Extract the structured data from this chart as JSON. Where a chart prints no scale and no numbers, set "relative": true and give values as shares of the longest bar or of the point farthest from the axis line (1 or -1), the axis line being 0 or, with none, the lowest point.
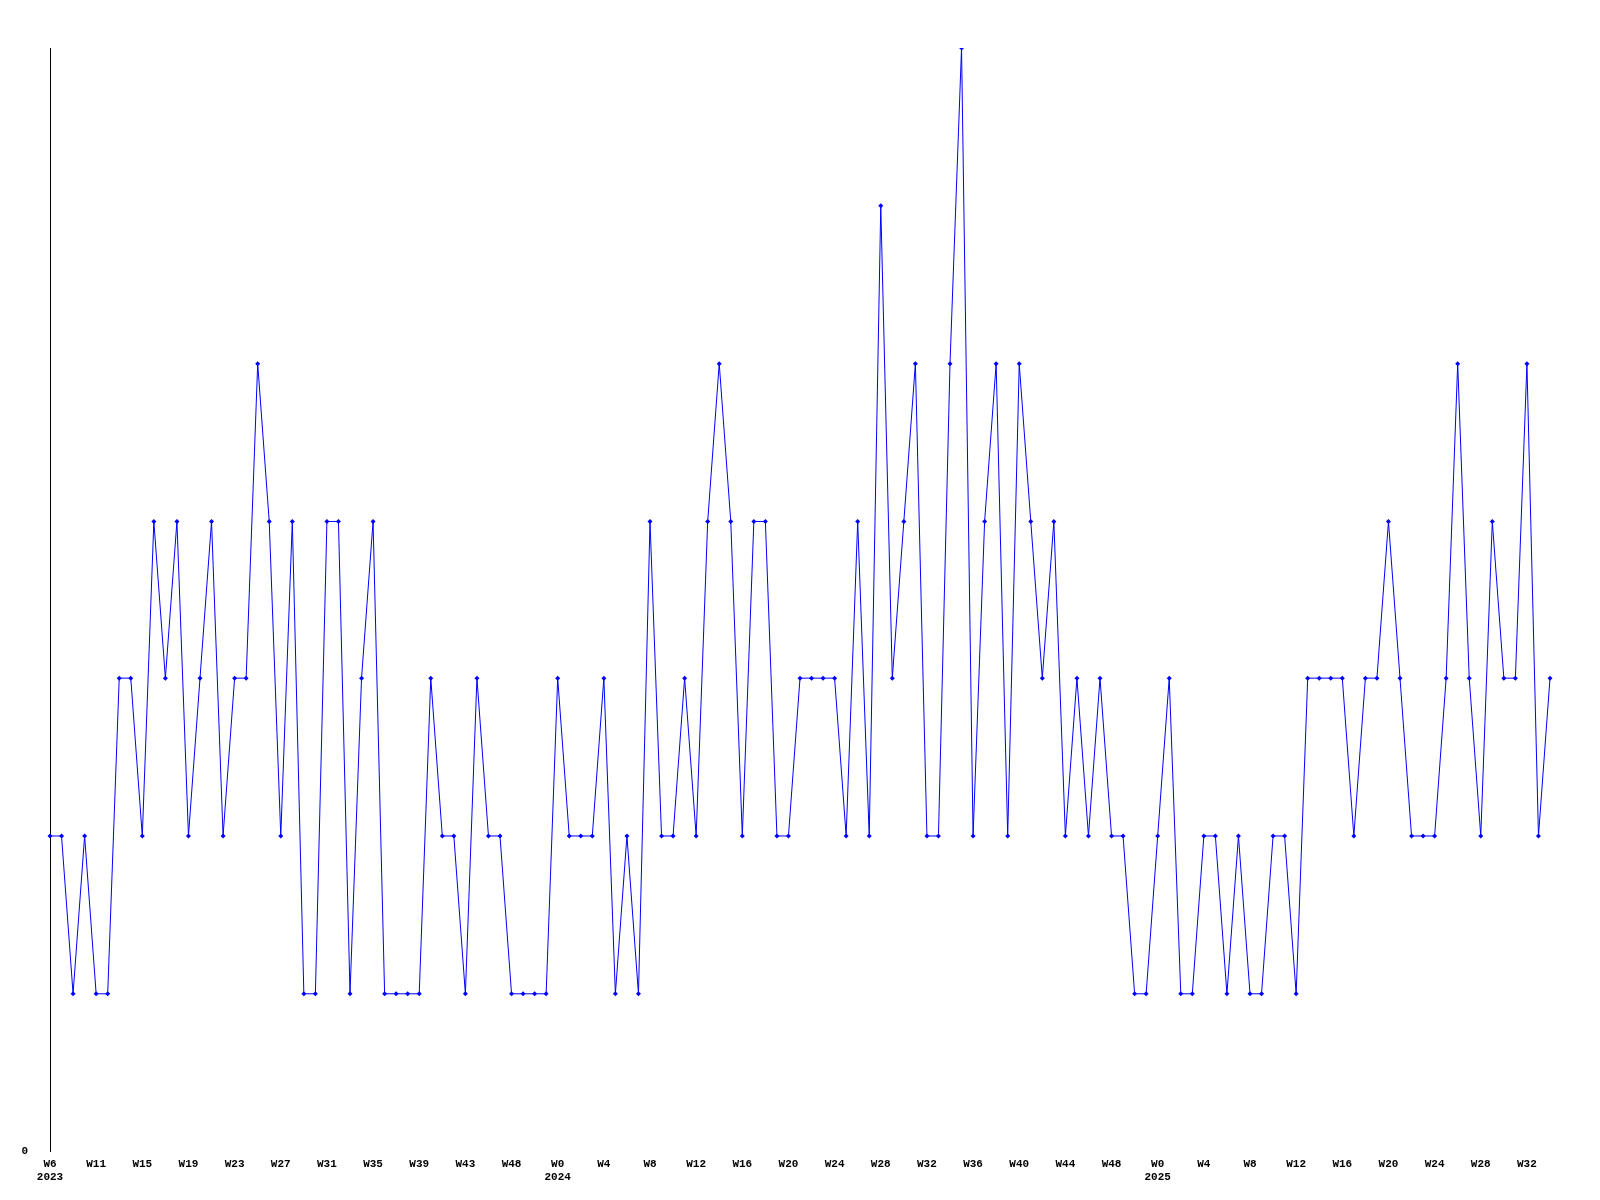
{
  "chart_data": {
    "type": "line",
    "relative": true,
    "color": "#0000ff",
    "marker": "diamond",
    "grid": false,
    "legend": false,
    "annotations": [
      "0"
    ],
    "categories": [
      "W6\n2023",
      null,
      null,
      null,
      "W11",
      null,
      null,
      null,
      "W15",
      null,
      null,
      null,
      "W19",
      null,
      null,
      null,
      "W23",
      null,
      null,
      null,
      "W27",
      null,
      null,
      null,
      "W31",
      null,
      null,
      null,
      "W35",
      null,
      null,
      null,
      "W39",
      null,
      null,
      null,
      "W43",
      null,
      null,
      null,
      "W48",
      null,
      null,
      null,
      "W0\n2024",
      null,
      null,
      null,
      "W4",
      null,
      null,
      null,
      "W8",
      null,
      null,
      null,
      "W12",
      null,
      null,
      null,
      "W16",
      null,
      null,
      null,
      "W20",
      null,
      null,
      null,
      "W24",
      null,
      null,
      null,
      "W28",
      null,
      null,
      null,
      "W32",
      null,
      null,
      null,
      "W36",
      null,
      null,
      null,
      "W40",
      null,
      null,
      null,
      "W44",
      null,
      null,
      null,
      "W48",
      null,
      null,
      null,
      "W0\n2025",
      null,
      null,
      null,
      "W4",
      null,
      null,
      null,
      "W8",
      null,
      null,
      null,
      "W12",
      null,
      null,
      null,
      "W16",
      null,
      null,
      null,
      "W20",
      null,
      null,
      null,
      "W24",
      null,
      null,
      null,
      "W28",
      null,
      null,
      null,
      "W32",
      null,
      null
    ],
    "values": [
      0.286,
      0.286,
      0.143,
      0.286,
      0.143,
      0.143,
      0.429,
      0.429,
      0.286,
      0.571,
      0.429,
      0.571,
      0.286,
      0.429,
      0.571,
      0.286,
      0.429,
      0.429,
      0.714,
      0.571,
      0.286,
      0.571,
      0.143,
      0.143,
      0.571,
      0.571,
      0.143,
      0.429,
      0.571,
      0.143,
      0.143,
      0.143,
      0.143,
      0.429,
      0.286,
      0.286,
      0.143,
      0.429,
      0.286,
      0.286,
      0.143,
      0.143,
      0.143,
      0.143,
      0.429,
      0.286,
      0.286,
      0.286,
      0.429,
      0.143,
      0.286,
      0.143,
      0.571,
      0.286,
      0.286,
      0.429,
      0.286,
      0.571,
      0.714,
      0.571,
      0.286,
      0.571,
      0.571,
      0.286,
      0.286,
      0.429,
      0.429,
      0.429,
      0.429,
      0.286,
      0.571,
      0.286,
      0.857,
      0.429,
      0.571,
      0.714,
      0.286,
      0.286,
      0.714,
      1,
      0.286,
      0.571,
      0.714,
      0.286,
      0.714,
      0.571,
      0.429,
      0.571,
      0.286,
      0.429,
      0.286,
      0.429,
      0.286,
      0.286,
      0.143,
      0.143,
      0.286,
      0.429,
      0.143,
      0.143,
      0.286,
      0.286,
      0.143,
      0.286,
      0.143,
      0.143,
      0.286,
      0.286,
      0.143,
      0.429,
      0.429,
      0.429,
      0.429,
      0.286,
      0.429,
      0.429,
      0.571,
      0.429,
      0.286,
      0.286,
      0.286,
      0.429,
      0.714,
      0.429,
      0.286,
      0.571,
      0.429,
      0.429,
      0.714,
      0.286,
      0.429
    ]
  }
}
